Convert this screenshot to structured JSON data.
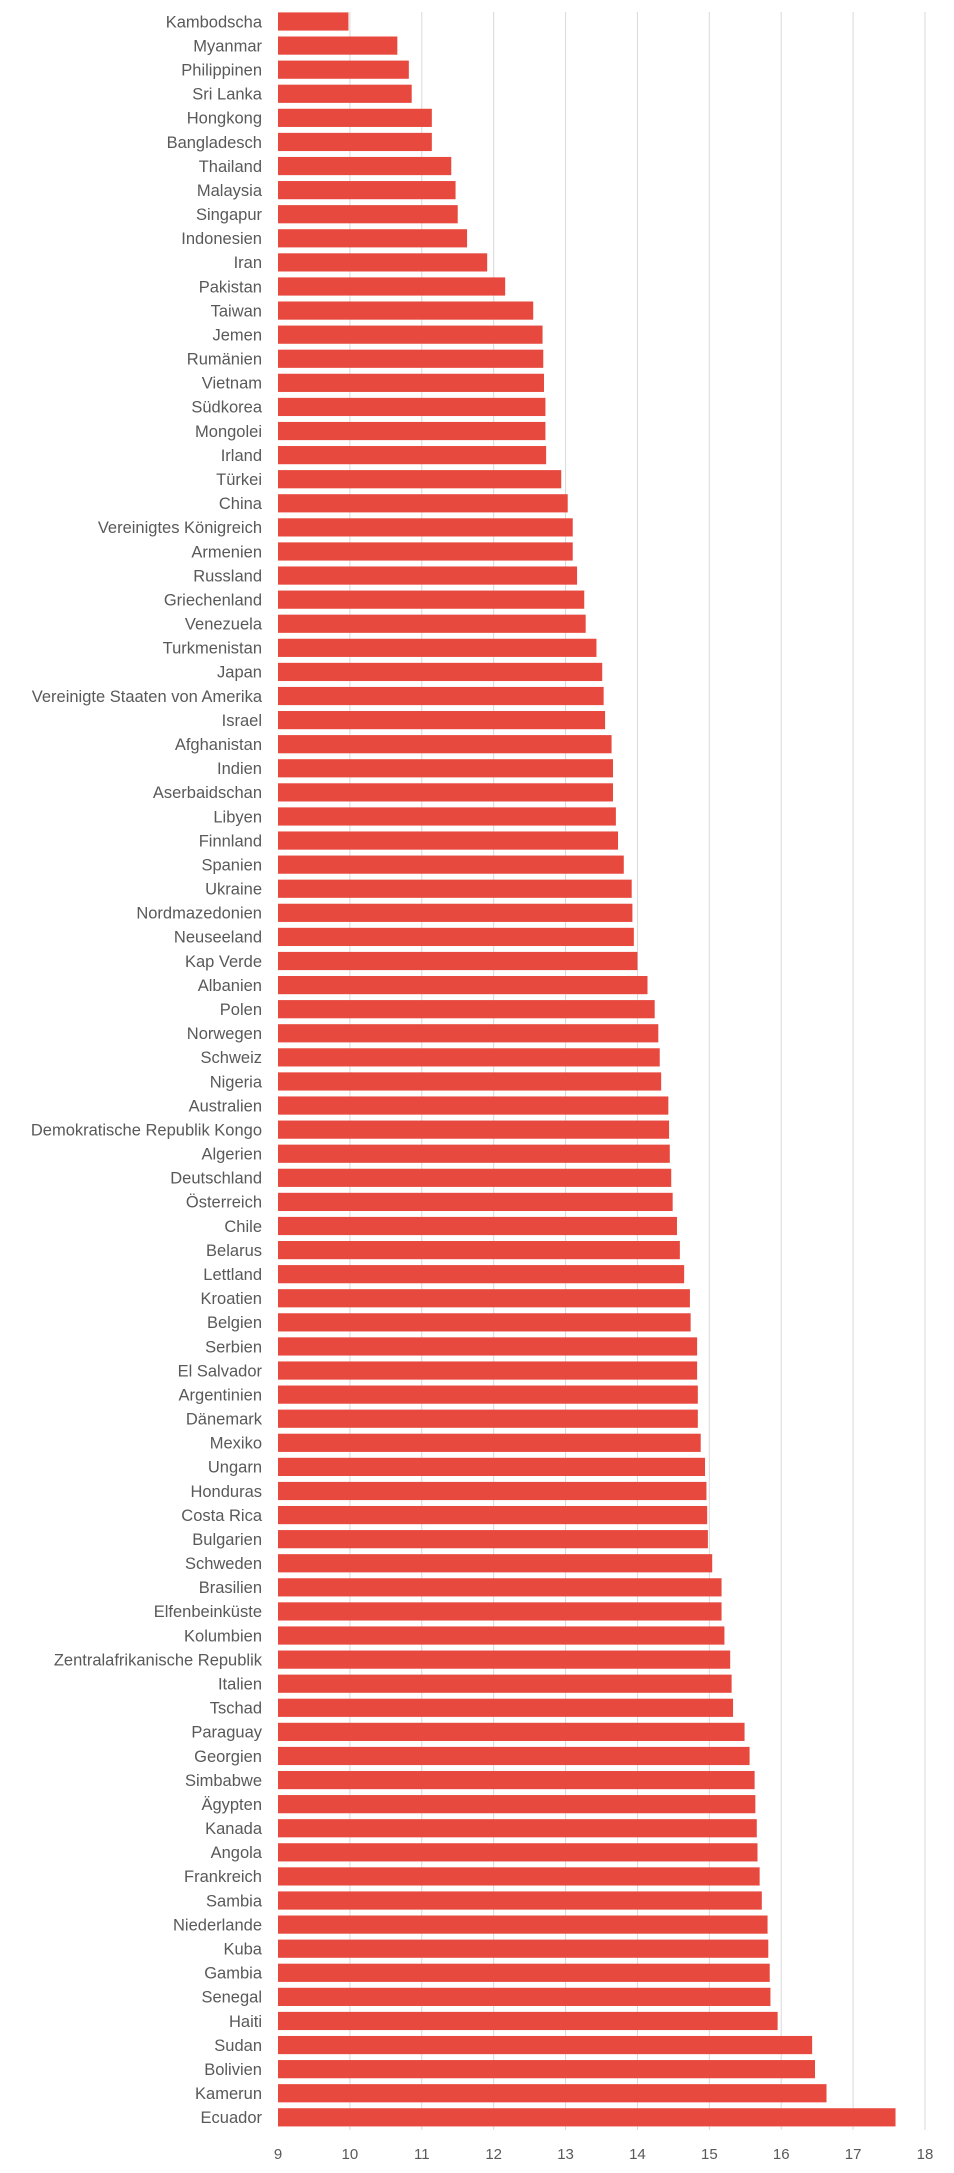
{
  "chart_data": {
    "type": "bar",
    "orientation": "horizontal",
    "title": "",
    "xlabel": "",
    "ylabel": "",
    "xlim": [
      9,
      18
    ],
    "xticks": [
      9,
      10,
      11,
      12,
      13,
      14,
      15,
      16,
      17,
      18
    ],
    "grid": true,
    "legend": "none",
    "bar_color": "#e8493e",
    "categories": [
      "Kambodscha",
      "Myanmar",
      "Philippinen",
      "Sri Lanka",
      "Hongkong",
      "Bangladesch",
      "Thailand",
      "Malaysia",
      "Singapur",
      "Indonesien",
      "Iran",
      "Pakistan",
      "Taiwan",
      "Jemen",
      "Rumänien",
      "Vietnam",
      "Südkorea",
      "Mongolei",
      "Irland",
      "Türkei",
      "China",
      "Vereinigtes Königreich",
      "Armenien",
      "Russland",
      "Griechenland",
      "Venezuela",
      "Turkmenistan",
      "Japan",
      "Vereinigte Staaten von Amerika",
      "Israel",
      "Afghanistan",
      "Indien",
      "Aserbaidschan",
      "Libyen",
      "Finnland",
      "Spanien",
      "Ukraine",
      "Nordmazedonien",
      "Neuseeland",
      "Kap Verde",
      "Albanien",
      "Polen",
      "Norwegen",
      "Schweiz",
      "Nigeria",
      "Australien",
      "Demokratische Republik Kongo",
      "Algerien",
      "Deutschland",
      "Österreich",
      "Chile",
      "Belarus",
      "Lettland",
      "Kroatien",
      "Belgien",
      "Serbien",
      "El Salvador",
      "Argentinien",
      "Dänemark",
      "Mexiko",
      "Ungarn",
      "Honduras",
      "Costa Rica",
      "Bulgarien",
      "Schweden",
      "Brasilien",
      "Elfenbeinküste",
      "Kolumbien",
      "Zentralafrikanische Republik",
      "Italien",
      "Tschad",
      "Paraguay",
      "Georgien",
      "Simbabwe",
      "Ägypten",
      "Kanada",
      "Angola",
      "Frankreich",
      "Sambia",
      "Niederlande",
      "Kuba",
      "Gambia",
      "Senegal",
      "Haiti",
      "Sudan",
      "Bolivien",
      "Kamerun",
      "Ecuador"
    ],
    "values": [
      9.98,
      10.66,
      10.82,
      10.86,
      11.14,
      11.14,
      11.41,
      11.47,
      11.5,
      11.63,
      11.91,
      12.16,
      12.55,
      12.68,
      12.69,
      12.7,
      12.72,
      12.72,
      12.73,
      12.94,
      13.03,
      13.1,
      13.1,
      13.16,
      13.26,
      13.28,
      13.43,
      13.51,
      13.53,
      13.55,
      13.64,
      13.66,
      13.66,
      13.7,
      13.73,
      13.81,
      13.92,
      13.93,
      13.95,
      14.0,
      14.14,
      14.24,
      14.29,
      14.31,
      14.33,
      14.43,
      14.44,
      14.45,
      14.47,
      14.49,
      14.55,
      14.59,
      14.65,
      14.73,
      14.74,
      14.83,
      14.83,
      14.84,
      14.84,
      14.88,
      14.94,
      14.96,
      14.97,
      14.98,
      15.04,
      15.17,
      15.17,
      15.21,
      15.29,
      15.31,
      15.33,
      15.49,
      15.56,
      15.63,
      15.64,
      15.66,
      15.67,
      15.7,
      15.73,
      15.81,
      15.82,
      15.84,
      15.85,
      15.95,
      16.43,
      16.47,
      16.63,
      17.59
    ]
  }
}
